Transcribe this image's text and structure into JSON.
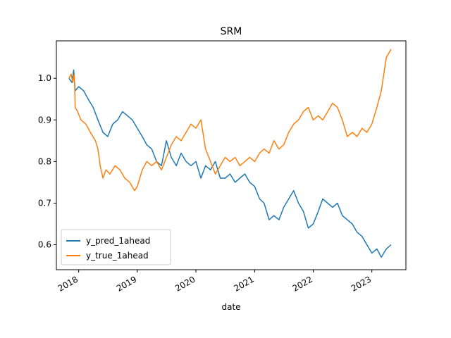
{
  "chart_data": {
    "type": "line",
    "title": "SRM",
    "xlabel": "date",
    "ylabel": "",
    "x_ticks": [
      "2018",
      "2019",
      "2020",
      "2021",
      "2022",
      "2023"
    ],
    "y_ticks": [
      "0.6",
      "0.7",
      "0.8",
      "0.9",
      "1.0"
    ],
    "ylim": [
      0.54,
      1.09
    ],
    "xlim": [
      "2017-08-15",
      "2023-08-01"
    ],
    "grid": false,
    "legend_position": "lower-left",
    "series": [
      {
        "name": "y_pred_1ahead",
        "color": "#1f77b4",
        "points": [
          [
            "2017-11-01",
            1.0
          ],
          [
            "2017-11-20",
            0.99
          ],
          [
            "2017-12-01",
            1.02
          ],
          [
            "2017-12-10",
            0.97
          ],
          [
            "2018-01-01",
            0.98
          ],
          [
            "2018-02-01",
            0.97
          ],
          [
            "2018-03-01",
            0.95
          ],
          [
            "2018-04-01",
            0.93
          ],
          [
            "2018-05-01",
            0.9
          ],
          [
            "2018-06-01",
            0.87
          ],
          [
            "2018-07-01",
            0.86
          ],
          [
            "2018-08-01",
            0.89
          ],
          [
            "2018-09-01",
            0.9
          ],
          [
            "2018-10-01",
            0.92
          ],
          [
            "2018-11-01",
            0.91
          ],
          [
            "2018-12-01",
            0.9
          ],
          [
            "2019-01-01",
            0.88
          ],
          [
            "2019-02-01",
            0.86
          ],
          [
            "2019-03-01",
            0.84
          ],
          [
            "2019-04-01",
            0.83
          ],
          [
            "2019-05-01",
            0.8
          ],
          [
            "2019-06-01",
            0.79
          ],
          [
            "2019-07-01",
            0.85
          ],
          [
            "2019-08-01",
            0.81
          ],
          [
            "2019-09-01",
            0.79
          ],
          [
            "2019-10-01",
            0.82
          ],
          [
            "2019-11-01",
            0.8
          ],
          [
            "2019-12-01",
            0.79
          ],
          [
            "2020-01-01",
            0.8
          ],
          [
            "2020-02-01",
            0.76
          ],
          [
            "2020-03-01",
            0.79
          ],
          [
            "2020-04-01",
            0.78
          ],
          [
            "2020-05-01",
            0.8
          ],
          [
            "2020-06-01",
            0.76
          ],
          [
            "2020-07-01",
            0.76
          ],
          [
            "2020-08-01",
            0.77
          ],
          [
            "2020-09-01",
            0.75
          ],
          [
            "2020-10-01",
            0.76
          ],
          [
            "2020-11-01",
            0.77
          ],
          [
            "2020-12-01",
            0.75
          ],
          [
            "2021-01-01",
            0.74
          ],
          [
            "2021-02-01",
            0.71
          ],
          [
            "2021-03-01",
            0.7
          ],
          [
            "2021-04-01",
            0.66
          ],
          [
            "2021-05-01",
            0.67
          ],
          [
            "2021-06-01",
            0.66
          ],
          [
            "2021-07-01",
            0.69
          ],
          [
            "2021-08-01",
            0.71
          ],
          [
            "2021-09-01",
            0.73
          ],
          [
            "2021-10-01",
            0.7
          ],
          [
            "2021-11-01",
            0.68
          ],
          [
            "2021-12-01",
            0.64
          ],
          [
            "2022-01-01",
            0.65
          ],
          [
            "2022-02-01",
            0.68
          ],
          [
            "2022-03-01",
            0.71
          ],
          [
            "2022-04-01",
            0.7
          ],
          [
            "2022-05-01",
            0.69
          ],
          [
            "2022-06-01",
            0.7
          ],
          [
            "2022-07-01",
            0.67
          ],
          [
            "2022-08-01",
            0.66
          ],
          [
            "2022-09-01",
            0.65
          ],
          [
            "2022-10-01",
            0.63
          ],
          [
            "2022-11-01",
            0.62
          ],
          [
            "2022-12-01",
            0.6
          ],
          [
            "2023-01-01",
            0.58
          ],
          [
            "2023-02-01",
            0.59
          ],
          [
            "2023-03-01",
            0.57
          ],
          [
            "2023-04-01",
            0.59
          ],
          [
            "2023-05-01",
            0.6
          ]
        ]
      },
      {
        "name": "y_true_1ahead",
        "color": "#ff7f0e",
        "points": [
          [
            "2017-11-01",
            1.0
          ],
          [
            "2017-11-15",
            1.01
          ],
          [
            "2017-11-25",
            0.99
          ],
          [
            "2017-12-05",
            1.01
          ],
          [
            "2017-12-10",
            0.93
          ],
          [
            "2017-12-25",
            0.92
          ],
          [
            "2018-01-15",
            0.9
          ],
          [
            "2018-02-15",
            0.89
          ],
          [
            "2018-03-15",
            0.87
          ],
          [
            "2018-04-15",
            0.85
          ],
          [
            "2018-05-01",
            0.83
          ],
          [
            "2018-05-15",
            0.79
          ],
          [
            "2018-06-01",
            0.76
          ],
          [
            "2018-06-20",
            0.78
          ],
          [
            "2018-07-15",
            0.77
          ],
          [
            "2018-08-15",
            0.79
          ],
          [
            "2018-09-15",
            0.78
          ],
          [
            "2018-10-15",
            0.76
          ],
          [
            "2018-11-15",
            0.75
          ],
          [
            "2018-12-15",
            0.73
          ],
          [
            "2019-01-01",
            0.74
          ],
          [
            "2019-02-01",
            0.78
          ],
          [
            "2019-03-01",
            0.8
          ],
          [
            "2019-04-01",
            0.79
          ],
          [
            "2019-05-01",
            0.8
          ],
          [
            "2019-06-01",
            0.78
          ],
          [
            "2019-07-01",
            0.81
          ],
          [
            "2019-08-01",
            0.84
          ],
          [
            "2019-09-01",
            0.86
          ],
          [
            "2019-10-01",
            0.85
          ],
          [
            "2019-11-01",
            0.87
          ],
          [
            "2019-12-01",
            0.89
          ],
          [
            "2020-01-01",
            0.88
          ],
          [
            "2020-02-01",
            0.9
          ],
          [
            "2020-03-01",
            0.83
          ],
          [
            "2020-04-01",
            0.8
          ],
          [
            "2020-05-01",
            0.77
          ],
          [
            "2020-06-01",
            0.79
          ],
          [
            "2020-07-01",
            0.81
          ],
          [
            "2020-08-01",
            0.8
          ],
          [
            "2020-09-01",
            0.81
          ],
          [
            "2020-10-01",
            0.79
          ],
          [
            "2020-11-01",
            0.8
          ],
          [
            "2020-12-01",
            0.81
          ],
          [
            "2021-01-01",
            0.8
          ],
          [
            "2021-02-01",
            0.82
          ],
          [
            "2021-03-01",
            0.83
          ],
          [
            "2021-04-01",
            0.82
          ],
          [
            "2021-05-01",
            0.85
          ],
          [
            "2021-06-01",
            0.83
          ],
          [
            "2021-07-01",
            0.84
          ],
          [
            "2021-08-01",
            0.87
          ],
          [
            "2021-09-01",
            0.89
          ],
          [
            "2021-10-01",
            0.9
          ],
          [
            "2021-11-01",
            0.92
          ],
          [
            "2021-12-01",
            0.93
          ],
          [
            "2022-01-01",
            0.9
          ],
          [
            "2022-02-01",
            0.91
          ],
          [
            "2022-03-01",
            0.9
          ],
          [
            "2022-04-01",
            0.92
          ],
          [
            "2022-05-01",
            0.94
          ],
          [
            "2022-06-01",
            0.93
          ],
          [
            "2022-07-01",
            0.9
          ],
          [
            "2022-08-01",
            0.86
          ],
          [
            "2022-09-01",
            0.87
          ],
          [
            "2022-10-01",
            0.86
          ],
          [
            "2022-11-01",
            0.88
          ],
          [
            "2022-12-01",
            0.87
          ],
          [
            "2023-01-01",
            0.89
          ],
          [
            "2023-02-01",
            0.93
          ],
          [
            "2023-03-01",
            0.97
          ],
          [
            "2023-04-01",
            1.05
          ],
          [
            "2023-05-01",
            1.07
          ]
        ]
      }
    ]
  }
}
